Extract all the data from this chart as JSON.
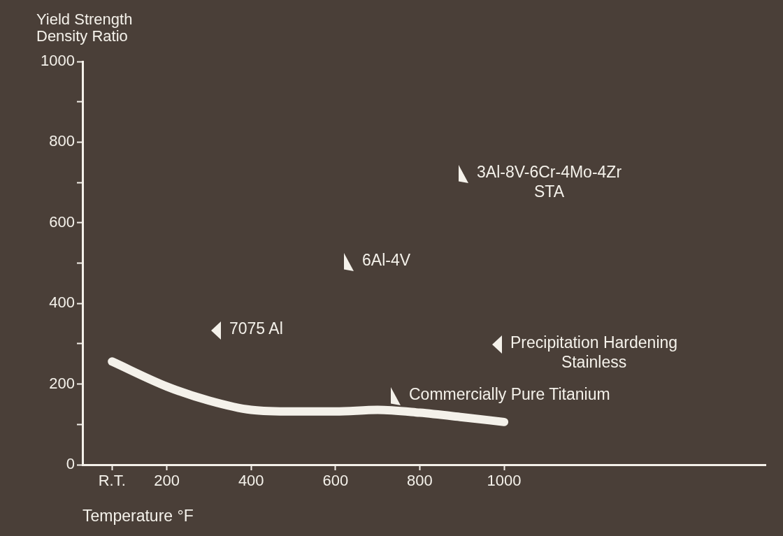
{
  "chart_data": {
    "type": "line",
    "xlabel": "Temperature °F",
    "ylabel": "Yield Strength Density Ratio",
    "x": [
      70,
      200,
      300,
      400,
      500,
      600,
      700,
      800,
      900,
      1000
    ],
    "series": [
      {
        "color": "#f4f1ea",
        "values": [
          256,
          194,
          159,
          136,
          132,
          132,
          136,
          129,
          118,
          106
        ]
      }
    ],
    "xlim": [
      0,
      1620
    ],
    "xticks": [
      {
        "value": 70,
        "label": "R.T."
      },
      200,
      400,
      600,
      800,
      1000
    ],
    "ylim": [
      0,
      1000
    ],
    "yticks": [
      0,
      {
        "value": 100,
        "label": null
      },
      200,
      {
        "value": 300,
        "label": null
      },
      400,
      {
        "value": 500,
        "label": null
      },
      600,
      {
        "value": 700,
        "label": null
      },
      800,
      {
        "value": 900,
        "label": null
      },
      1000
    ],
    "grid": false,
    "legend": false,
    "marker": "none",
    "line_style": "solid",
    "annotations": [
      "3Al-8V-6Cr-4Mo-4Zr\nSTA",
      "6Al-4V",
      "7075 Al",
      "Precipitation Hardening\nStainless",
      "Commercially Pure Titanium"
    ]
  }
}
